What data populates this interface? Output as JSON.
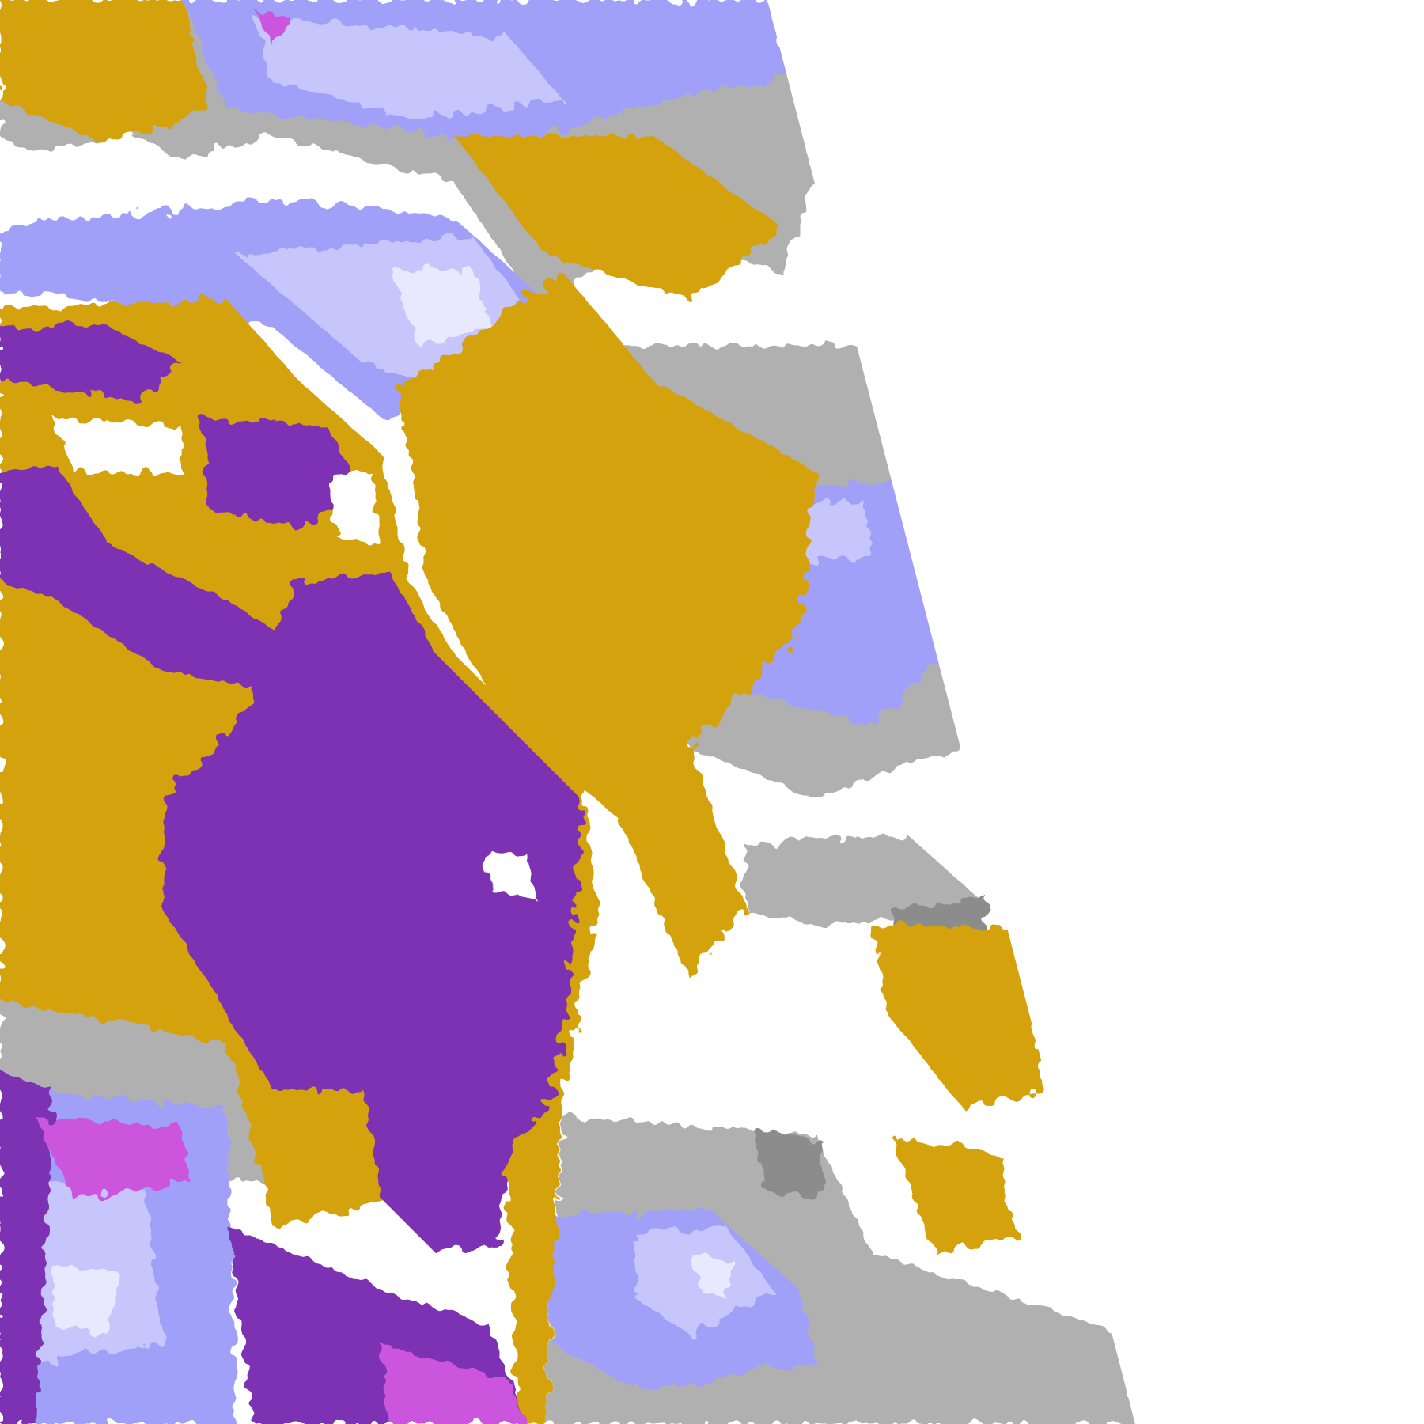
{
  "map": {
    "background": "#ffffff",
    "palette": {
      "purple": "#7b33b3",
      "gold": "#d4a20f",
      "lavender": "#a0a0f8",
      "light_lavender": "#c6c6fc",
      "pale_lavender": "#e8e8ff",
      "gray": "#b0b0b0",
      "dark_gray": "#8c8c8c",
      "magenta": "#cc55dd"
    }
  }
}
